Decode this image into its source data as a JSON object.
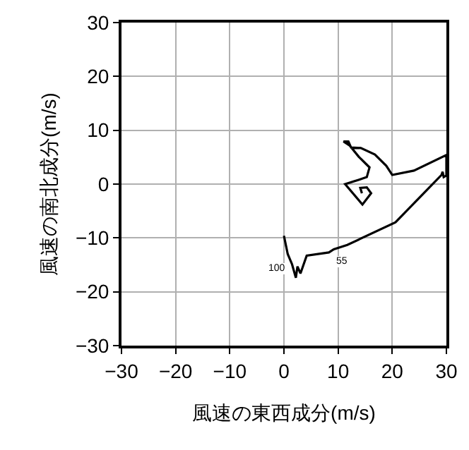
{
  "chart_data": {
    "type": "line",
    "xlabel": "風速の東西成分(m/s)",
    "ylabel": "風速の南北成分(m/s)",
    "x": [
      0,
      0.7,
      1.5,
      2.2,
      2.5,
      3.05,
      4.2,
      8.3,
      9.2,
      11.7,
      20.6,
      29.1,
      29.3,
      29.5,
      30,
      30,
      24.0,
      20.0,
      18.9,
      16.8,
      14.2,
      12.4,
      11.9,
      11.0,
      12.1,
      13.8,
      15.1,
      15.8,
      15.3,
      13.8,
      11.3,
      14.5,
      16.1,
      15.3,
      14.1,
      14.4
    ],
    "series": [
      {
        "color": "#000000",
        "values": [
          -9.6,
          -13.0,
          -14.9,
          -17.4,
          -15.3,
          -16.6,
          -13.3,
          -12.7,
          -12.1,
          -11.3,
          -7.1,
          1.7,
          2.3,
          1.3,
          1.6,
          5.4,
          2.5,
          1.7,
          3.4,
          5.5,
          6.7,
          6.8,
          7.9,
          7.9,
          7.2,
          5.1,
          3.8,
          3.1,
          1.3,
          0.8,
          0.0,
          -3.8,
          -1.7,
          -0.6,
          -0.7,
          -1.7
        ]
      }
    ],
    "xlim": [
      -30,
      30
    ],
    "ylim": [
      -30,
      30
    ],
    "xticks": [
      -30,
      -20,
      -10,
      0,
      10,
      20,
      30
    ],
    "yticks": [
      -30,
      -20,
      -10,
      0,
      10,
      20,
      30
    ],
    "grid": true,
    "annotations": [
      {
        "text": "100",
        "x": 0.7,
        "y": -13.0
      },
      {
        "text": "55",
        "x": 9.2,
        "y": -12.1
      }
    ]
  }
}
